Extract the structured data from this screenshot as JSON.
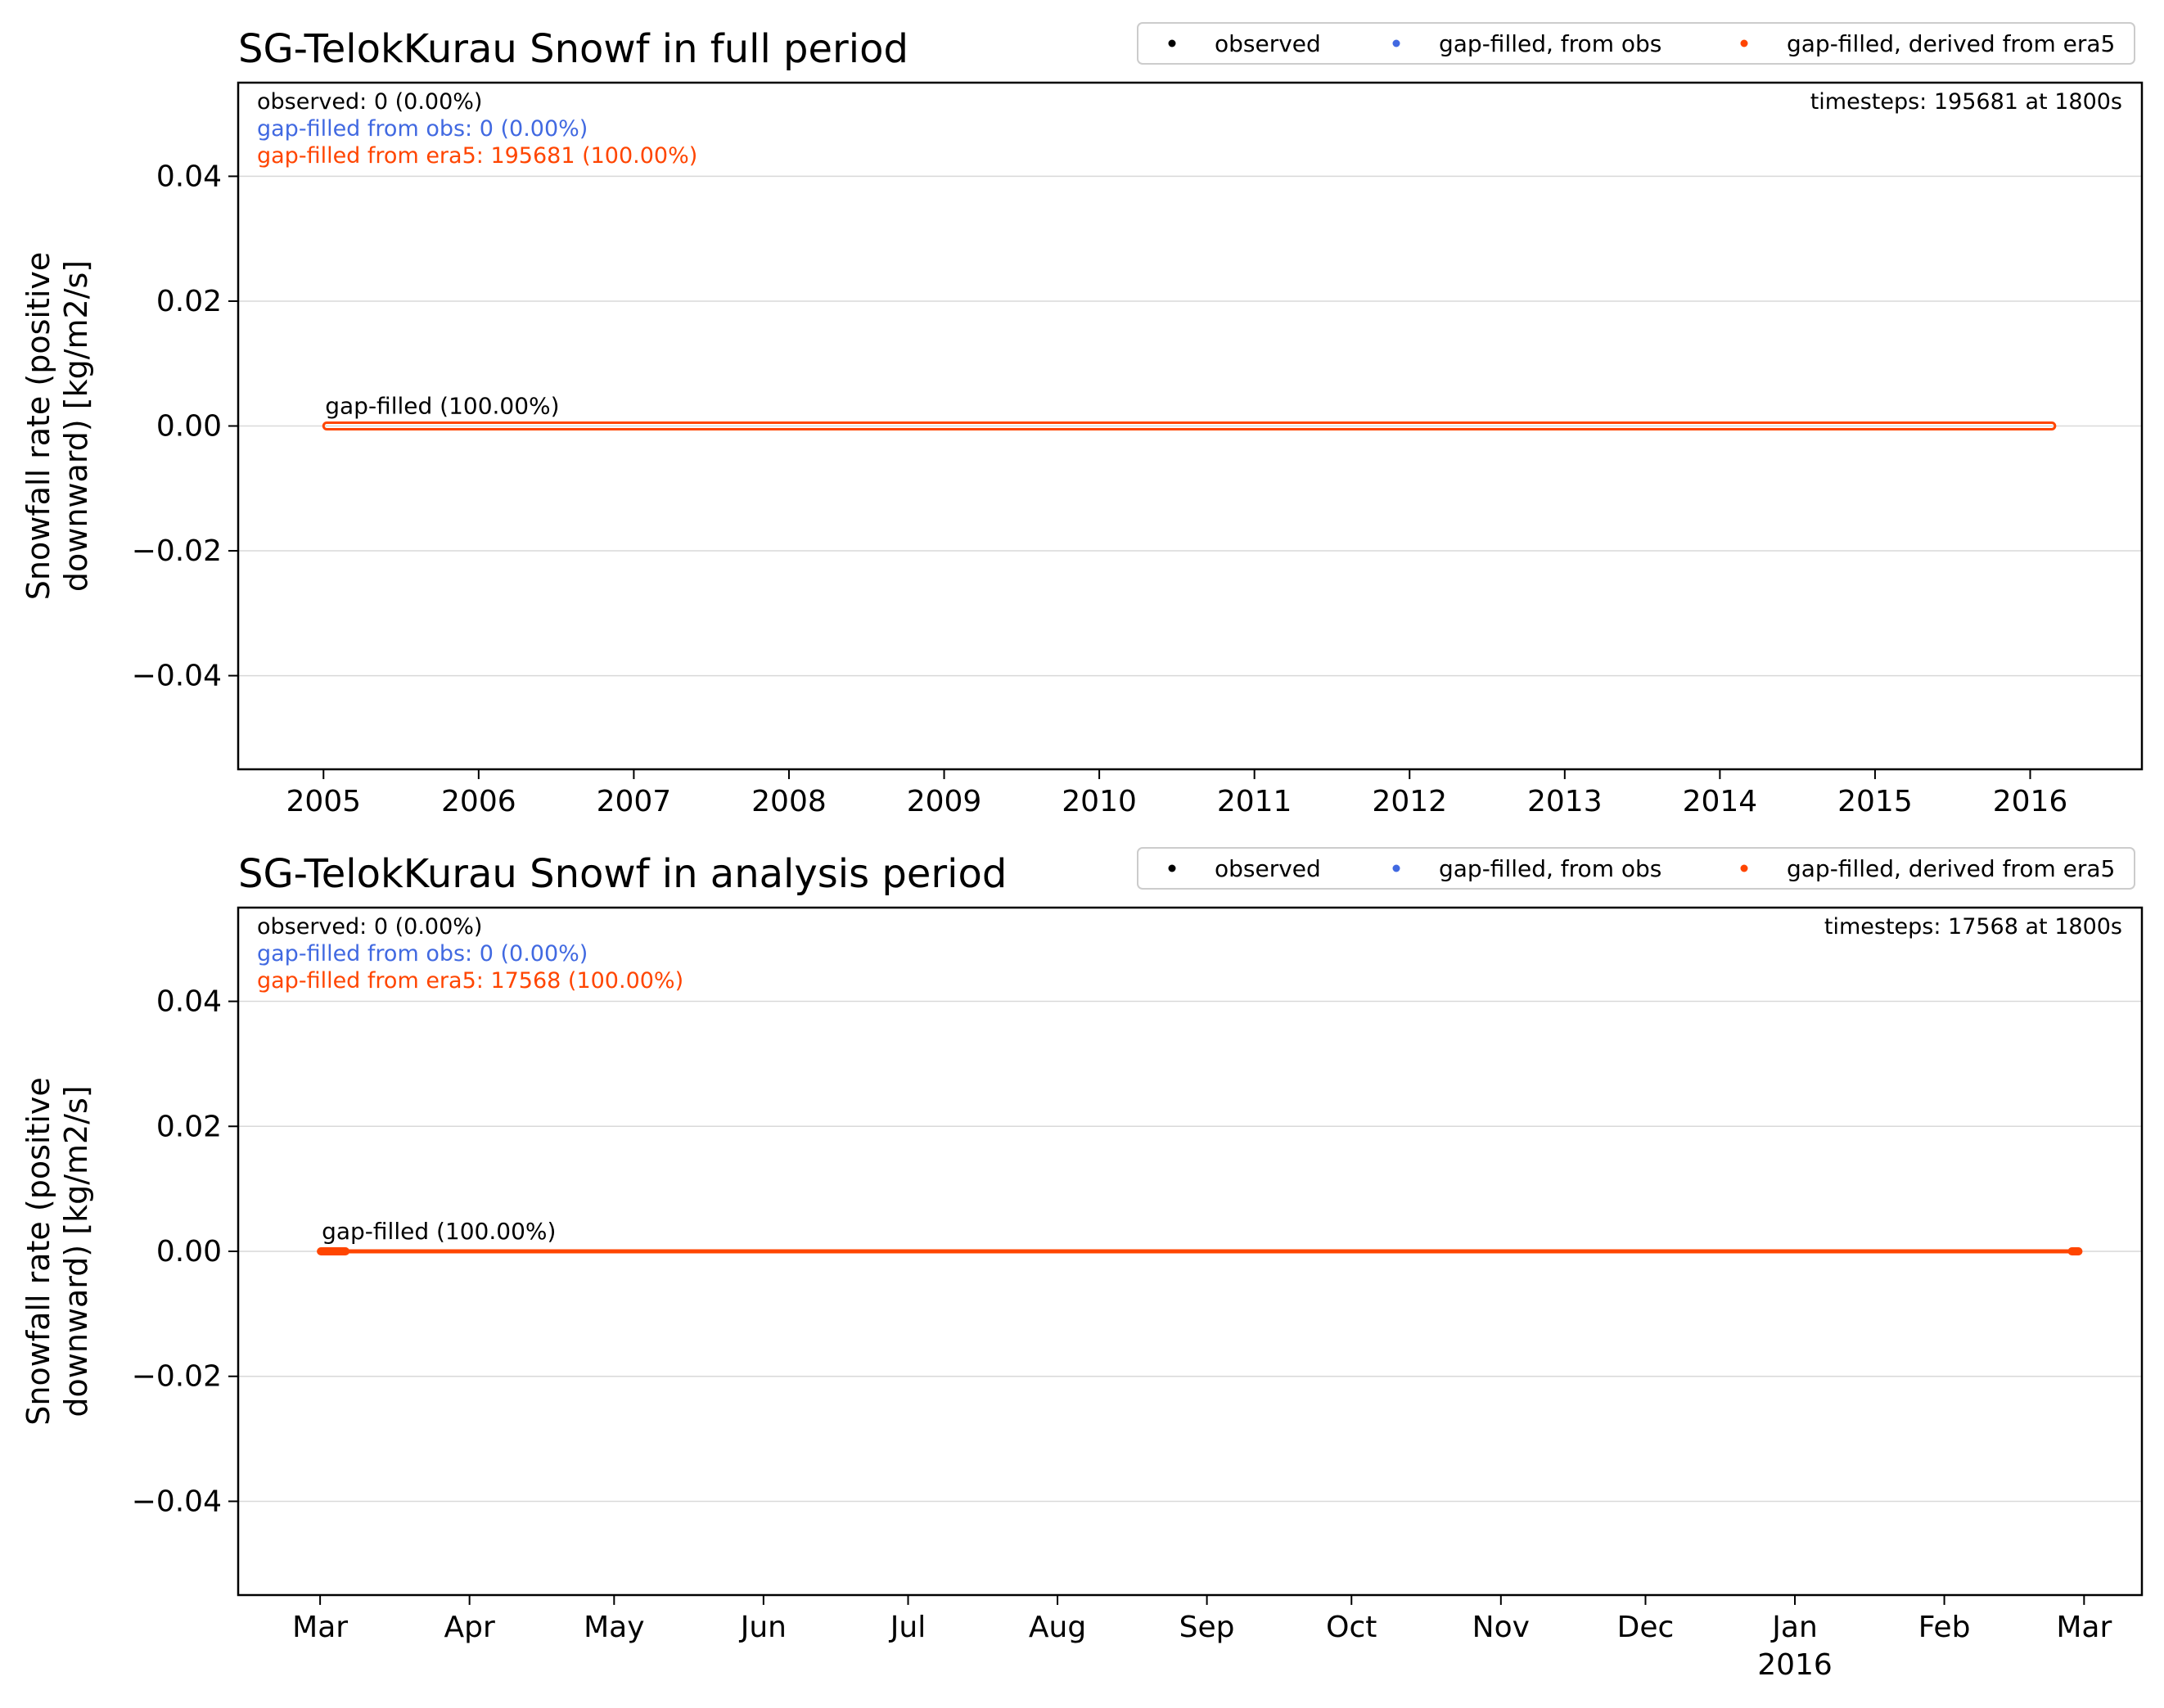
{
  "chart_data": [
    {
      "type": "line",
      "title": "SG-TelokKurau Snowf in full period",
      "ylabel_lines": [
        "Snowfall rate (positive",
        "downward) [kg/m2/s]"
      ],
      "ylim": [
        -0.055,
        0.055
      ],
      "yticks": [
        0.04,
        0.02,
        0.0,
        -0.02,
        -0.04
      ],
      "ytick_labels": [
        "0.04",
        "0.02",
        "0.00",
        "−0.02",
        "−0.04"
      ],
      "xlim": [
        2004.45,
        2016.72
      ],
      "xticks": [
        2005,
        2006,
        2007,
        2008,
        2009,
        2010,
        2011,
        2012,
        2013,
        2014,
        2015,
        2016
      ],
      "xtick_labels": [
        "2005",
        "2006",
        "2007",
        "2008",
        "2009",
        "2010",
        "2011",
        "2012",
        "2013",
        "2014",
        "2015",
        "2016"
      ],
      "grid": "y",
      "legend": {
        "placement": "above-right",
        "entries": [
          {
            "label": "observed",
            "color": "#000000"
          },
          {
            "label": "gap-filled, from obs",
            "color": "#4169e1"
          },
          {
            "label": "gap-filled, derived from era5",
            "color": "#ff4500"
          }
        ]
      },
      "stats": {
        "observed": "observed: 0 (0.00%)",
        "from_obs": "gap-filled from obs: 0 (0.00%)",
        "from_era5": "gap-filled from era5: 195681 (100.00%)",
        "timesteps": "timesteps: 195681 at 1800s"
      },
      "annotation": "gap-filled (100.00%)",
      "series": [
        {
          "name": "gap-filled, derived from era5",
          "color": "#ff4500",
          "x": [
            2005.0,
            2016.16
          ],
          "y": [
            0.0,
            0.0
          ],
          "style": "box"
        }
      ]
    },
    {
      "type": "line",
      "title": "SG-TelokKurau Snowf in analysis period",
      "ylabel_lines": [
        "Snowfall rate (positive",
        "downward) [kg/m2/s]"
      ],
      "ylim": [
        -0.055,
        0.055
      ],
      "yticks": [
        0.04,
        0.02,
        0.0,
        -0.02,
        -0.04
      ],
      "ytick_labels": [
        "0.04",
        "0.02",
        "0.00",
        "−0.02",
        "−0.04"
      ],
      "xlim": [
        "2015-02-12",
        "2016-03-13"
      ],
      "xticks": [
        "2015-03-01",
        "2015-04-01",
        "2015-05-01",
        "2015-06-01",
        "2015-07-01",
        "2015-08-01",
        "2015-09-01",
        "2015-10-01",
        "2015-11-01",
        "2015-12-01",
        "2016-01-01",
        "2016-02-01",
        "2016-03-01"
      ],
      "xtick_labels": [
        "Mar",
        "Apr",
        "May",
        "Jun",
        "Jul",
        "Aug",
        "Sep",
        "Oct",
        "Nov",
        "Dec",
        "Jan",
        "Feb",
        "Mar"
      ],
      "xtick_sublabel": {
        "index": 10,
        "text": "2016"
      },
      "grid": "y",
      "legend": {
        "placement": "above-right",
        "entries": [
          {
            "label": "observed",
            "color": "#000000"
          },
          {
            "label": "gap-filled, from obs",
            "color": "#4169e1"
          },
          {
            "label": "gap-filled, derived from era5",
            "color": "#ff4500"
          }
        ]
      },
      "stats": {
        "observed": "observed: 0 (0.00%)",
        "from_obs": "gap-filled from obs: 0 (0.00%)",
        "from_era5": "gap-filled from era5: 17568 (100.00%)",
        "timesteps": "timesteps: 17568 at 1800s"
      },
      "annotation": "gap-filled (100.00%)",
      "series": [
        {
          "name": "gap-filled, derived from era5",
          "color": "#ff4500",
          "x": [
            "2015-03-01",
            "2016-02-29"
          ],
          "y": [
            0.0,
            0.0
          ],
          "style": "solid"
        }
      ]
    }
  ]
}
